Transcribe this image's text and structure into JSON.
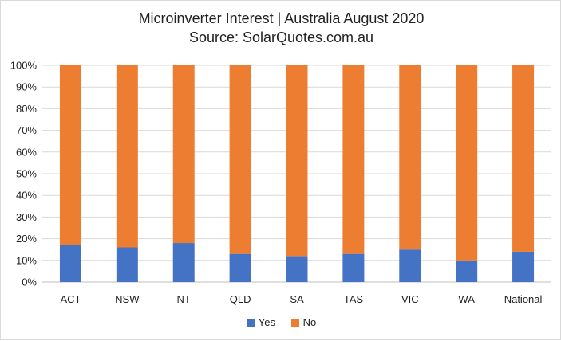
{
  "chart_data": {
    "type": "bar",
    "stacked": true,
    "title": "Microinverter Interest | Australia August 2020",
    "subtitle": "Source: SolarQuotes.com.au",
    "categories": [
      "ACT",
      "NSW",
      "NT",
      "QLD",
      "SA",
      "TAS",
      "VIC",
      "WA",
      "National"
    ],
    "series": [
      {
        "name": "Yes",
        "color": "#4472c4",
        "values": [
          17,
          16,
          18,
          13,
          12,
          13,
          15,
          10,
          14
        ]
      },
      {
        "name": "No",
        "color": "#ed7d31",
        "values": [
          83,
          84,
          82,
          87,
          88,
          87,
          85,
          90,
          86
        ]
      }
    ],
    "yticks": [
      "0%",
      "10%",
      "20%",
      "30%",
      "40%",
      "50%",
      "60%",
      "70%",
      "80%",
      "90%",
      "100%"
    ],
    "ylim": [
      0,
      100
    ],
    "grid": true,
    "legend_position": "bottom"
  }
}
